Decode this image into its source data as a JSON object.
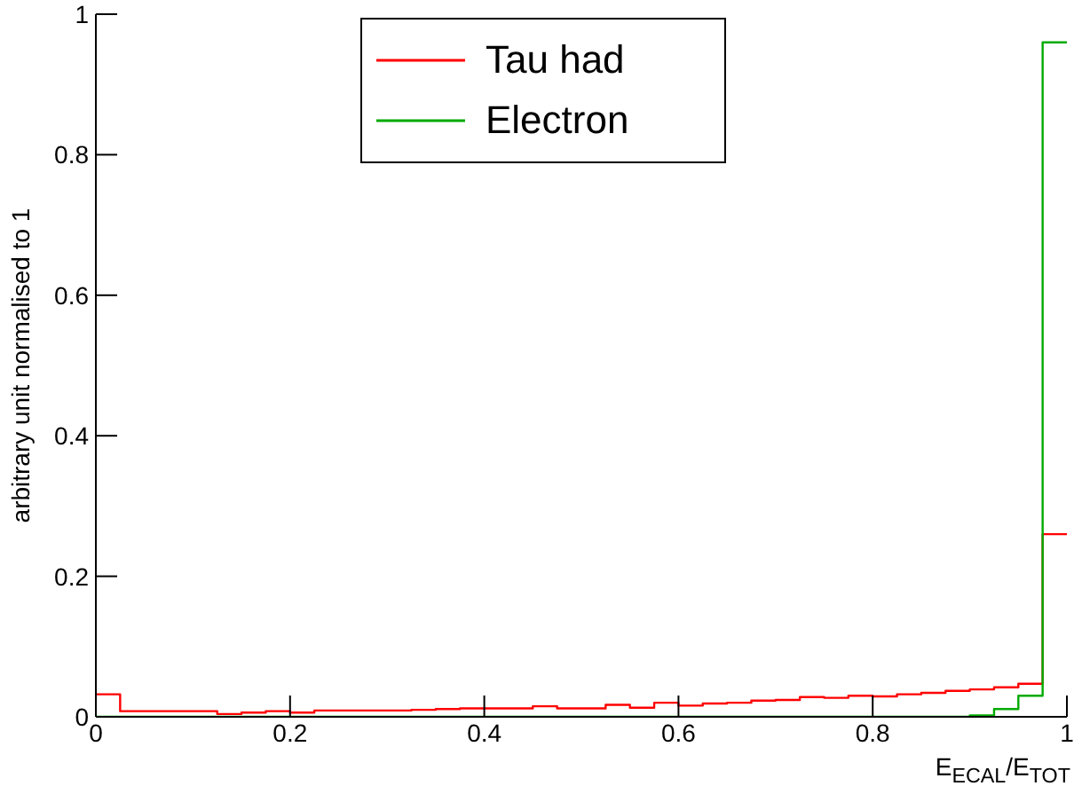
{
  "chart_data": {
    "type": "histogram",
    "xlabel": "E$_{ECAL}$/E$_{TOT}$",
    "ylabel": "arbitrary unit normalised to 1",
    "bins": [
      0,
      0.025,
      0.05,
      0.075,
      0.1,
      0.125,
      0.15,
      0.175,
      0.2,
      0.225,
      0.25,
      0.275,
      0.3,
      0.325,
      0.35,
      0.375,
      0.4,
      0.425,
      0.45,
      0.475,
      0.5,
      0.525,
      0.55,
      0.575,
      0.6,
      0.625,
      0.65,
      0.675,
      0.7,
      0.725,
      0.75,
      0.775,
      0.8,
      0.825,
      0.85,
      0.875,
      0.9,
      0.925,
      0.95,
      0.975,
      1
    ],
    "series": [
      {
        "name": "Tau had",
        "color": "#ff0000",
        "values": [
          0.032,
          0.008,
          0.008,
          0.008,
          0.008,
          0.004,
          0.006,
          0.008,
          0.006,
          0.009,
          0.009,
          0.009,
          0.009,
          0.01,
          0.011,
          0.012,
          0.012,
          0.012,
          0.015,
          0.012,
          0.012,
          0.017,
          0.013,
          0.02,
          0.016,
          0.019,
          0.02,
          0.023,
          0.024,
          0.028,
          0.027,
          0.03,
          0.029,
          0.032,
          0.034,
          0.037,
          0.039,
          0.042,
          0.047,
          0.26
        ]
      },
      {
        "name": "Electron",
        "color": "#00aa00",
        "values": [
          0,
          0,
          0,
          0,
          0,
          0,
          0,
          0,
          0,
          0,
          0,
          0,
          0,
          0,
          0,
          0,
          0,
          0,
          0,
          0,
          0,
          0,
          0,
          0,
          0,
          0,
          0,
          0,
          0,
          0,
          0,
          0,
          0,
          0,
          0,
          0,
          0.002,
          0.011,
          0.03,
          0.96
        ]
      }
    ],
    "xlim": [
      0,
      1
    ],
    "ylim": [
      0,
      1
    ],
    "xticks": [
      0,
      0.2,
      0.4,
      0.6,
      0.8,
      1
    ],
    "yticks": [
      0,
      0.2,
      0.4,
      0.6,
      0.8,
      1
    ],
    "legend": "top"
  }
}
